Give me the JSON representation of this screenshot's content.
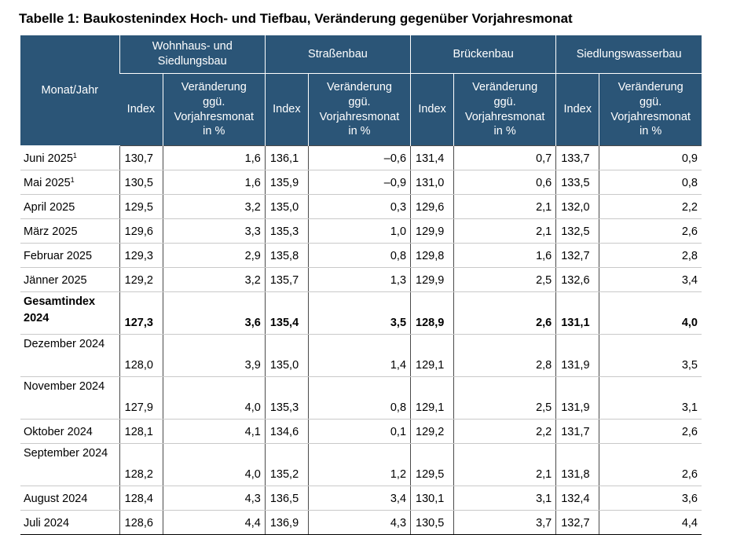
{
  "title": "Tabelle 1: Baukostenindex Hoch- und Tiefbau, Veränderung gegenüber Vorjahresmonat",
  "header": {
    "row_label": "Monat/Jahr",
    "groups": [
      "Wohnhaus- und Siedlungsbau",
      "Straßenbau",
      "Brückenbau",
      "Siedlungswasserbau"
    ],
    "index_label": "Index",
    "change_label": "Veränderung ggü. Vorjahresmonat in %"
  },
  "rows": [
    {
      "label": "Juni 2025",
      "sup": "1",
      "values": [
        "130,7",
        "1,6",
        "136,1",
        "–0,6",
        "131,4",
        "0,7",
        "133,7",
        "0,9"
      ]
    },
    {
      "label": "Mai 2025",
      "sup": "1",
      "values": [
        "130,5",
        "1,6",
        "135,9",
        "–0,9",
        "131,0",
        "0,6",
        "133,5",
        "0,8"
      ]
    },
    {
      "label": "April 2025",
      "sup": "",
      "values": [
        "129,5",
        "3,2",
        "135,0",
        "0,3",
        "129,6",
        "2,1",
        "132,0",
        "2,2"
      ]
    },
    {
      "label": "März 2025",
      "sup": "",
      "values": [
        "129,6",
        "3,3",
        "135,3",
        "1,0",
        "129,9",
        "2,1",
        "132,5",
        "2,6"
      ]
    },
    {
      "label": "Februar 2025",
      "sup": "",
      "values": [
        "129,3",
        "2,9",
        "135,8",
        "0,8",
        "129,8",
        "1,6",
        "132,7",
        "2,8"
      ]
    },
    {
      "label": "Jänner 2025",
      "sup": "",
      "values": [
        "129,2",
        "3,2",
        "135,7",
        "1,3",
        "129,9",
        "2,5",
        "132,6",
        "3,4"
      ]
    },
    {
      "label": "Gesamtindex 2024",
      "sup": "",
      "values": [
        "127,3",
        "3,6",
        "135,4",
        "3,5",
        "128,9",
        "2,6",
        "131,1",
        "4,0"
      ]
    },
    {
      "label": "Dezember 2024",
      "sup": "",
      "values": [
        "128,0",
        "3,9",
        "135,0",
        "1,4",
        "129,1",
        "2,8",
        "131,9",
        "3,5"
      ]
    },
    {
      "label": "November 2024",
      "sup": "",
      "values": [
        "127,9",
        "4,0",
        "135,3",
        "0,8",
        "129,1",
        "2,5",
        "131,9",
        "3,1"
      ]
    },
    {
      "label": "Oktober 2024",
      "sup": "",
      "values": [
        "128,1",
        "4,1",
        "134,6",
        "0,1",
        "129,2",
        "2,2",
        "131,7",
        "2,6"
      ]
    },
    {
      "label": "September 2024",
      "sup": "",
      "values": [
        "128,2",
        "4,0",
        "135,2",
        "1,2",
        "129,5",
        "2,1",
        "131,8",
        "2,6"
      ]
    },
    {
      "label": "August 2024",
      "sup": "",
      "values": [
        "128,4",
        "4,3",
        "136,5",
        "3,4",
        "130,1",
        "3,1",
        "132,4",
        "3,6"
      ]
    },
    {
      "label": "Juli 2024",
      "sup": "",
      "values": [
        "128,6",
        "4,4",
        "136,9",
        "4,3",
        "130,5",
        "3,7",
        "132,7",
        "4,4"
      ]
    }
  ]
}
